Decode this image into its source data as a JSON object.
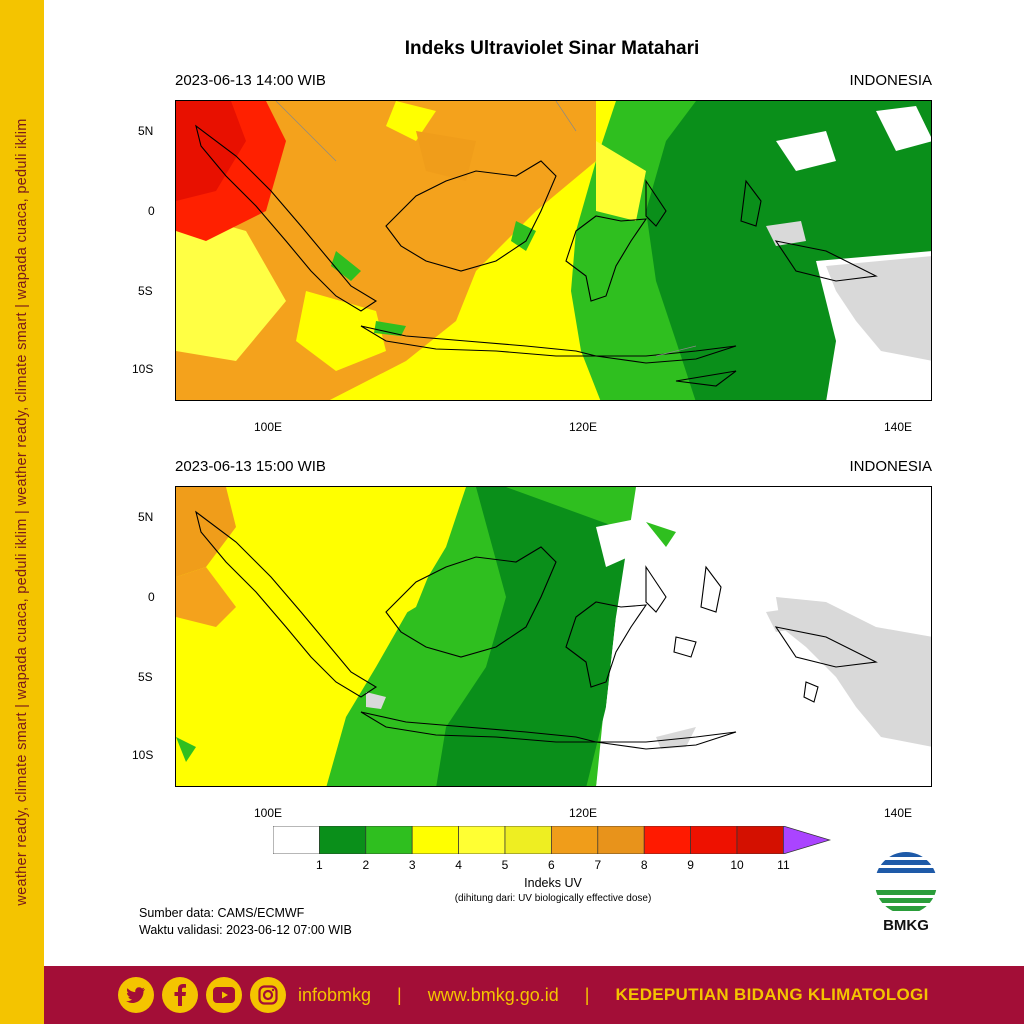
{
  "side_text": "weather ready, climate smart  |  wapada cuaca, peduli iklim  |  weather ready, climate smart  |  wapada cuaca, peduli iklim",
  "title": "Indeks Ultraviolet Sinar Matahari",
  "panels": [
    {
      "datetime": "2023-06-13  14:00 WIB",
      "region": "INDONESIA"
    },
    {
      "datetime": "2023-06-13  15:00 WIB",
      "region": "INDONESIA"
    }
  ],
  "lat_ticks": [
    "5N",
    "0",
    "5S",
    "10S"
  ],
  "lon_ticks": [
    "100E",
    "120E",
    "140E"
  ],
  "chart_data": {
    "type": "heatmap",
    "title": "Indeks Ultraviolet Sinar Matahari",
    "xlabel": "",
    "ylabel": "",
    "xlim": [
      94,
      142
    ],
    "ylim": [
      -12,
      7
    ],
    "colorbar": {
      "label": "Indeks UV",
      "sublabel": "(dihitung dari: UV biologically effective dose)",
      "ticks": [
        "1",
        "2",
        "3",
        "4",
        "5",
        "6",
        "7",
        "8",
        "9",
        "10",
        "11"
      ],
      "colors": [
        "#ffffff",
        "#0a8f1a",
        "#2fbf1f",
        "#ffff00",
        "#ffff33",
        "#eeee22",
        "#f09d1a",
        "#e8931b",
        "#ff1a00",
        "#ee1100",
        "#d41000",
        "#aa44ff"
      ]
    },
    "panels": [
      {
        "time": "2023-06-13 14:00 WIB"
      },
      {
        "time": "2023-06-13 15:00 WIB"
      }
    ]
  },
  "source": "Sumber data: CAMS/ECMWF",
  "validity": "Waktu validasi: 2023-06-12 07:00 WIB",
  "logo_text": "BMKG",
  "footer": {
    "handle": "infobmkg",
    "website": "www.bmkg.go.id",
    "org": "KEDEPUTIAN BIDANG KLIMATOLOGI",
    "icons": [
      "twitter-icon",
      "facebook-icon",
      "youtube-icon",
      "instagram-icon"
    ]
  }
}
